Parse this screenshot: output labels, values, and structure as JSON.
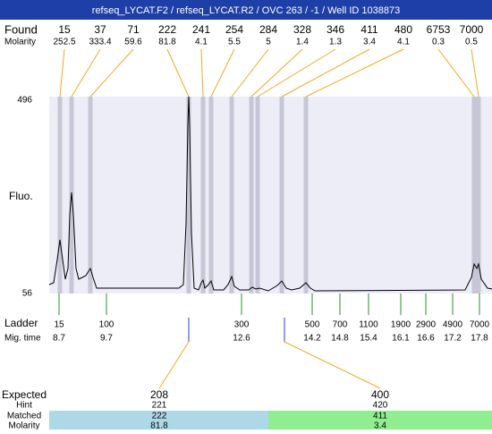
{
  "header": {
    "title": "refseq_LYCAT.F2 / refseq_LYCAT.R2 / OVC 263 / -1  / Well ID 1038873"
  },
  "found": {
    "label": "Found",
    "molarity_label": "Molarity",
    "peaks": [
      {
        "size": 15,
        "molarity": 252.5
      },
      {
        "size": 37,
        "molarity": 333.4
      },
      {
        "size": 71,
        "molarity": 59.6
      },
      {
        "size": 222,
        "molarity": 81.8
      },
      {
        "size": 241,
        "molarity": 4.1
      },
      {
        "size": 254,
        "molarity": 5.5
      },
      {
        "size": 284,
        "molarity": 5
      },
      {
        "size": 328,
        "molarity": 1.4
      },
      {
        "size": 346,
        "molarity": 1.3
      },
      {
        "size": 411,
        "molarity": 3.4
      },
      {
        "size": 480,
        "molarity": 4.1
      },
      {
        "size": 6753,
        "molarity": 0.3
      },
      {
        "size": 7000,
        "molarity": 0.5
      }
    ]
  },
  "plot": {
    "y_label": "Fluo.",
    "y_max": 496,
    "y_min": 56
  },
  "ladder": {
    "label": "Ladder",
    "time_label": "Mig. time",
    "items": [
      {
        "size": 15,
        "time": 8.7
      },
      {
        "size": 100,
        "time": 9.7
      },
      {
        "size": 300,
        "time": 12.6
      },
      {
        "size": 500,
        "time": 14.2
      },
      {
        "size": 700,
        "time": 14.8
      },
      {
        "size": 1100,
        "time": 15.4
      },
      {
        "size": 1900,
        "time": 16.1
      },
      {
        "size": 2900,
        "time": 16.6
      },
      {
        "size": 4900,
        "time": 17.2
      },
      {
        "size": 7000,
        "time": 17.8
      }
    ]
  },
  "expected": {
    "labels": [
      "Expected",
      "Hint",
      "Matched",
      "Molarity"
    ],
    "targets": [
      {
        "expected": 208,
        "hint": 221,
        "matched": 222,
        "molarity": 81.8
      },
      {
        "expected": 400,
        "hint": 420,
        "matched": 411,
        "molarity": 3.4
      }
    ]
  }
}
